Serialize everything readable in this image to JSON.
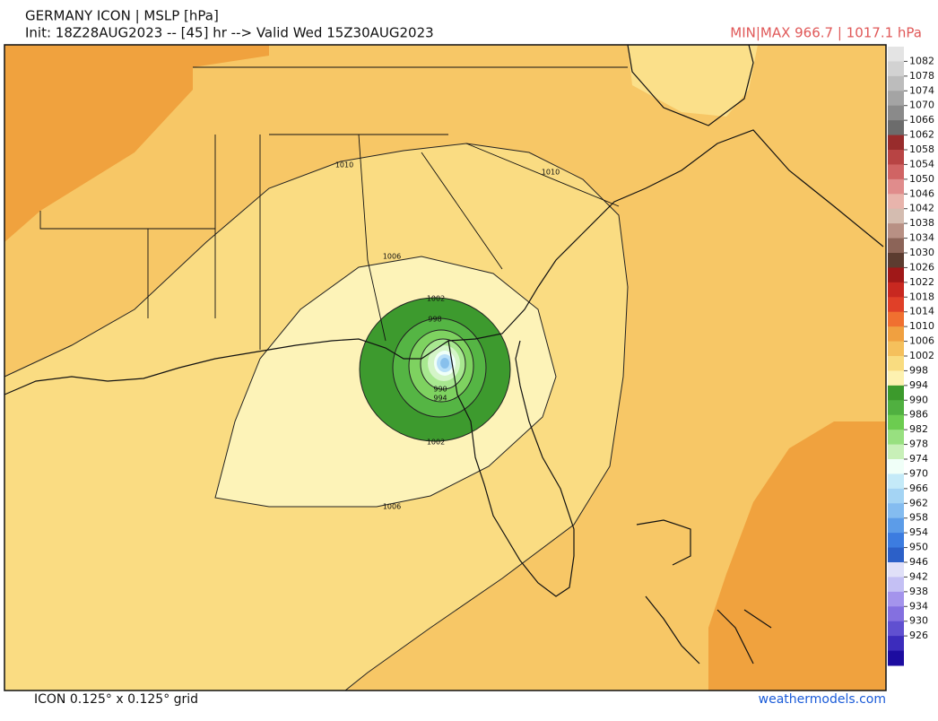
{
  "header": {
    "title": "GERMANY ICON | MSLP [hPa]",
    "subtitle": "Init: 18Z28AUG2023 -- [45] hr --> Valid Wed 15Z30AUG2023",
    "minmax": "MIN|MAX 966.7 | 1017.1 hPa"
  },
  "colorbar": {
    "labels": [
      "1082",
      "1078",
      "1074",
      "1070",
      "1066",
      "1062",
      "1058",
      "1054",
      "1050",
      "1046",
      "1042",
      "1038",
      "1034",
      "1030",
      "1026",
      "1022",
      "1018",
      "1014",
      "1010",
      "1006",
      "1002",
      "998",
      "994",
      "990",
      "986",
      "982",
      "978",
      "974",
      "970",
      "966",
      "962",
      "958",
      "954",
      "950",
      "946",
      "942",
      "938",
      "934",
      "930",
      "926"
    ],
    "colors": [
      "#e4e4e4",
      "#d2d2d2",
      "#bcbcbc",
      "#a4a4a4",
      "#8a8a8a",
      "#6c6c6c",
      "#982c2c",
      "#b84444",
      "#d06464",
      "#e08c8c",
      "#e8b4ac",
      "#d4bcb0",
      "#b89084",
      "#8c6458",
      "#5c3c30",
      "#a01818",
      "#c82820",
      "#e04028",
      "#f07030",
      "#f0a040",
      "#f5c05c",
      "#f9dc80",
      "#fdf1b0",
      "#3c9a2c",
      "#50b040",
      "#6ccc50",
      "#98e080",
      "#c8f0b8",
      "#f0fff8",
      "#c4eaf8",
      "#a4d4f4",
      "#84bcf0",
      "#5c9ce8",
      "#3c7ce0",
      "#2c60c8",
      "#e0e0f8",
      "#c4c0f4",
      "#a494ec",
      "#8470e0",
      "#6050d0",
      "#3c2cbc",
      "#1c0ca0"
    ]
  },
  "contour_labels": [
    "1010",
    "1010",
    "1006",
    "1002",
    "998",
    "990",
    "994",
    "1002",
    "1006"
  ],
  "footer": {
    "grid": "ICON 0.125° x 0.125° grid",
    "credit": "weathermodels.com"
  }
}
